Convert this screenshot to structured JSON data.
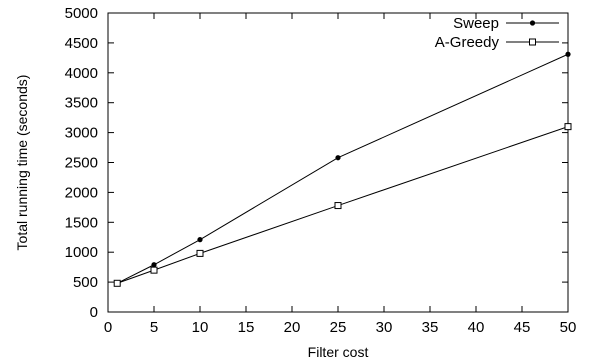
{
  "chart_data": {
    "type": "line",
    "xlabel": "Filter cost",
    "ylabel": "Total running time (seconds)",
    "xlim": [
      0,
      50
    ],
    "ylim": [
      0,
      5000
    ],
    "xticks": [
      0,
      5,
      10,
      15,
      20,
      25,
      30,
      35,
      40,
      45,
      50
    ],
    "yticks": [
      0,
      500,
      1000,
      1500,
      2000,
      2500,
      3000,
      3500,
      4000,
      4500,
      5000
    ],
    "grid": false,
    "legend_position": "top-right",
    "series": [
      {
        "name": "Sweep",
        "marker": "filled-circle",
        "x": [
          1,
          5,
          10,
          25,
          50
        ],
        "y": [
          480,
          790,
          1210,
          2580,
          4310
        ]
      },
      {
        "name": "A-Greedy",
        "marker": "open-square",
        "x": [
          1,
          5,
          10,
          25,
          50
        ],
        "y": [
          480,
          700,
          980,
          1780,
          3100
        ]
      }
    ]
  }
}
